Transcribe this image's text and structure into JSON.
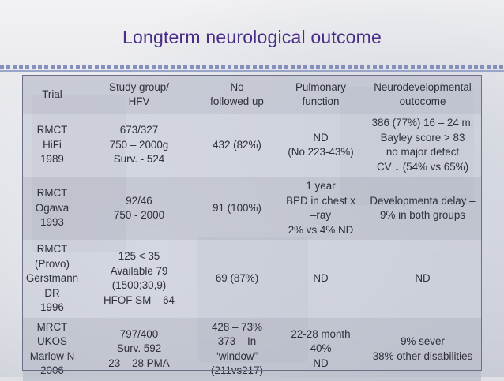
{
  "slide": {
    "title": "Longterm neurological outcome"
  },
  "table": {
    "headers": [
      [
        "Trial"
      ],
      [
        "Study group/",
        "HFV"
      ],
      [
        "No",
        "followed up"
      ],
      [
        "Pulmonary",
        "function"
      ],
      [
        "Neurodevelopmental",
        "outocome"
      ]
    ],
    "rows": [
      [
        [
          "RMCT",
          "HiFi",
          "1989"
        ],
        [
          "673/327",
          "750 – 2000g",
          "Surv. - 524"
        ],
        [
          "432 (82%)"
        ],
        [
          "ND",
          "(No 223-43%)"
        ],
        [
          "386 (77%) 16 – 24 m.",
          "Bayley score > 83",
          "no major defect",
          "CV ↓ (54% vs 65%)"
        ]
      ],
      [
        [
          "RMCT",
          "Ogawa",
          "1993"
        ],
        [
          "92/46",
          "750 - 2000"
        ],
        [
          "91 (100%)"
        ],
        [
          "1 year",
          "BPD in chest x",
          "–ray",
          "2% vs 4% ND"
        ],
        [
          "Developmenta delay –",
          "9% in both groups"
        ]
      ],
      [
        [
          "RMCT",
          "(Provo)",
          "Gerstmann",
          "DR",
          "1996"
        ],
        [
          "125 < 35",
          "Available 79",
          "(1500;30,9)",
          "HFOF SM – 64"
        ],
        [
          "69 (87%)"
        ],
        [
          "ND"
        ],
        [
          "ND"
        ]
      ],
      [
        [
          "MRCT",
          "UKOS",
          "Marlow N",
          "2006"
        ],
        [
          "797/400",
          "Surv. 592",
          "23 – 28 PMA"
        ],
        [
          "428 – 73%",
          "373 – In",
          "‘window”",
          "(211vs217)"
        ],
        [
          "22-28 month",
          "40%",
          "ND"
        ],
        [
          "9% sever",
          "38% other disabilities"
        ]
      ]
    ]
  }
}
